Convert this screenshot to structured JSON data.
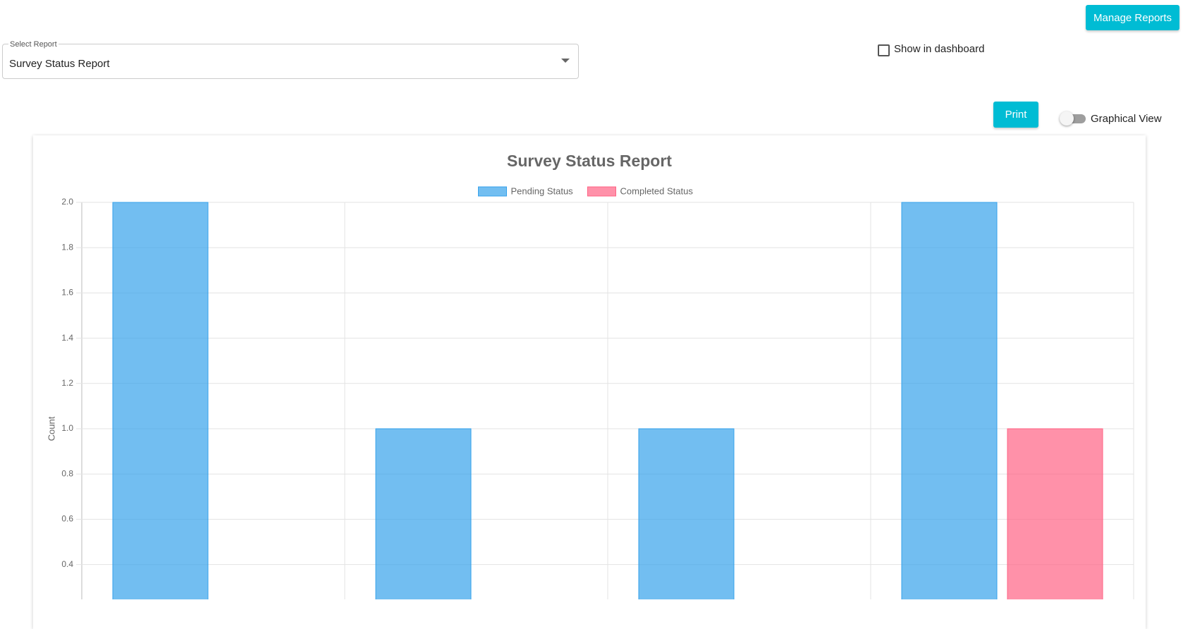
{
  "toolbar": {
    "manage_button": "Manage Reports",
    "select_label": "Select Report",
    "select_value": "Survey Status Report",
    "dashboard_checkbox": "Show in dashboard",
    "print_button": "Print",
    "view_toggle": "Graphical View"
  },
  "chart_data": {
    "type": "bar",
    "title": "Survey Status Report",
    "y_label": "Count",
    "categories": [
      null,
      null,
      null,
      null
    ],
    "series": [
      {
        "name": "Pending Status",
        "color": "#36a2eb",
        "values": [
          2,
          1,
          1,
          2
        ]
      },
      {
        "name": "Completed Status",
        "color": "#ff6384",
        "values": [
          0,
          0,
          0,
          1
        ]
      }
    ],
    "ylim": [
      0,
      2
    ],
    "yticks": [
      {
        "value": 0.4,
        "label": "0.4"
      },
      {
        "value": 0.6,
        "label": "0.6"
      },
      {
        "value": 0.8,
        "label": "0.8"
      },
      {
        "value": 1,
        "label": "1.0"
      },
      {
        "value": 1.2,
        "label": "1.2"
      },
      {
        "value": 1.4,
        "label": "1.4"
      },
      {
        "value": 1.6,
        "label": "1.6"
      },
      {
        "value": 1.8,
        "label": "1.8"
      },
      {
        "value": 2,
        "label": "2.0"
      }
    ],
    "grid": true,
    "legend": "top"
  }
}
